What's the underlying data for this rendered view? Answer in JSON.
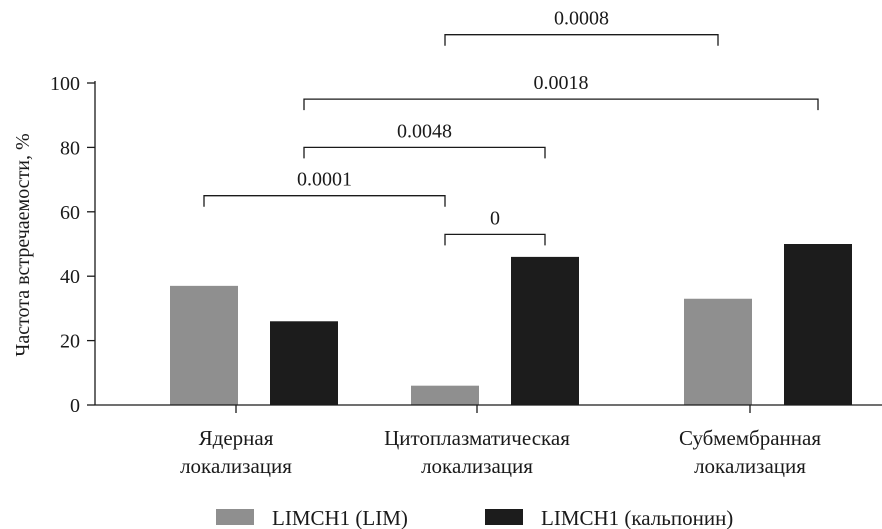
{
  "chart_data": {
    "type": "bar",
    "title": "",
    "xlabel": "",
    "ylabel": "Частота встречаемости, %",
    "ylim": [
      0,
      100
    ],
    "yticks": [
      0,
      20,
      40,
      60,
      80,
      100
    ],
    "grid": false,
    "legend_position": "bottom",
    "categories": [
      [
        "Ядерная",
        "локализация"
      ],
      [
        "Цитоплазматическая",
        "локализация"
      ],
      [
        "Субмембранная",
        "локализация"
      ]
    ],
    "series": [
      {
        "name": "LIMCH1 (LIM)",
        "color": "#8f8f8f",
        "values": [
          37,
          6,
          33
        ]
      },
      {
        "name": "LIMCH1 (кальпонин)",
        "color": "#1c1c1c",
        "values": [
          26,
          46,
          50
        ]
      }
    ],
    "brackets": [
      {
        "label": "0.0008",
        "from": [
          1,
          0
        ],
        "to": [
          2,
          0
        ],
        "y": 115
      },
      {
        "label": "0.0018",
        "from": [
          0,
          1
        ],
        "to": [
          2,
          1
        ],
        "y": 95
      },
      {
        "label": "0.0048",
        "from": [
          0,
          1
        ],
        "to": [
          1,
          1
        ],
        "y": 80
      },
      {
        "label": "0.0001",
        "from": [
          0,
          0
        ],
        "to": [
          1,
          0
        ],
        "y": 65
      },
      {
        "label": "0",
        "from": [
          1,
          0
        ],
        "to": [
          1,
          1
        ],
        "y": 53
      }
    ]
  }
}
